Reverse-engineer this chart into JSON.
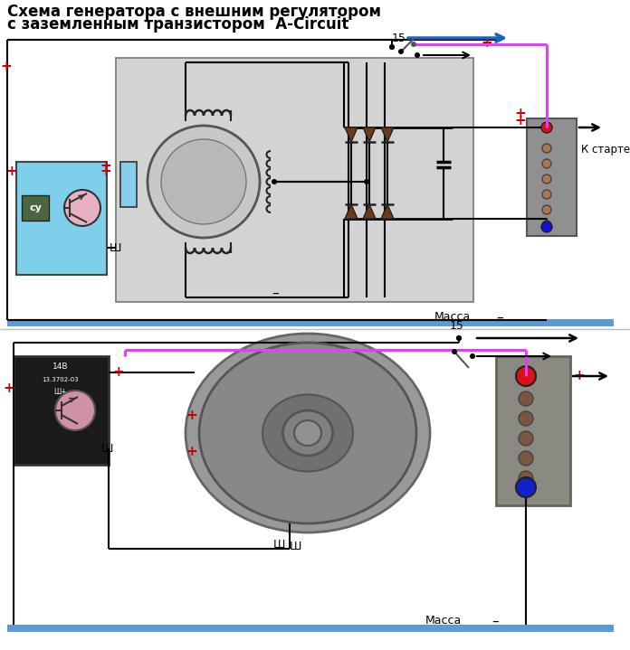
{
  "title_line1": "Схема генератора с внешним регулятором",
  "title_line2": "с заземленным транзистором  A-Circuit",
  "bg_color": "#ffffff",
  "pink_wire": "#e040fb",
  "blue_arrow": "#1565c0",
  "red_plus": "#cc0000",
  "massa_bar": "#5b9bd5",
  "diode_color": "#6d3a1a",
  "cyan_box": "#7ecfea",
  "gray_box": "#d3d3d3",
  "wire_black": "#111111",
  "label_15": "15",
  "label_massa": "Масса",
  "label_starter": "К стартеру",
  "label_sh": "Ш",
  "label_su": "су"
}
